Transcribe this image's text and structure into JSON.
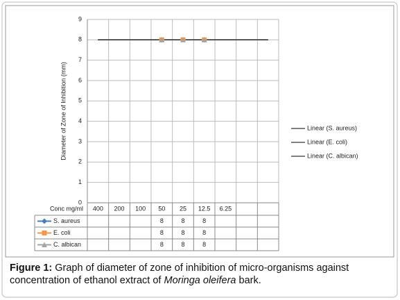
{
  "chart_data": {
    "type": "line",
    "y_axis_label": "Diameter of Zone of Inhibition (mm)",
    "table_header": "Conc mg/ml",
    "categories": [
      "400",
      "200",
      "100",
      "50",
      "25",
      "12.5",
      "6.25",
      null,
      null
    ],
    "series": [
      {
        "name": "S. aureus",
        "color": "#4a7ebb",
        "marker": "diamond",
        "values": [
          null,
          null,
          null,
          8,
          8,
          8,
          null,
          null,
          null
        ]
      },
      {
        "name": "E. coli",
        "color": "#f79646",
        "marker": "square",
        "values": [
          null,
          null,
          null,
          8,
          8,
          8,
          null,
          null,
          null
        ]
      },
      {
        "name": "C. albican",
        "color": "#a5a5a5",
        "marker": "triangle",
        "values": [
          null,
          null,
          null,
          8,
          8,
          8,
          null,
          null,
          null
        ]
      }
    ],
    "trendlines": [
      {
        "name": "Linear (S. aureus)",
        "text_color": "#1f5fa8",
        "color": "#000000",
        "slope": 0,
        "intercept": 8
      },
      {
        "name": "Linear (E. coli)",
        "text_color": "#a0302a",
        "color": "#000000",
        "slope": 0,
        "intercept": 8
      },
      {
        "name": "Linear (C. albican)",
        "text_color": "#404040",
        "color": "#000000",
        "slope": 0,
        "intercept": 8
      }
    ],
    "ylim": [
      0,
      9
    ],
    "yticks": [
      0,
      1,
      2,
      3,
      4,
      5,
      6,
      7,
      8,
      9
    ],
    "grid": true
  },
  "caption": {
    "label": "Figure 1:",
    "text": "Graph of diameter of zone of inhibition of micro-organisms against concentration of ethanol extract of",
    "species": "Moringa oleifera",
    "end": "bark."
  }
}
